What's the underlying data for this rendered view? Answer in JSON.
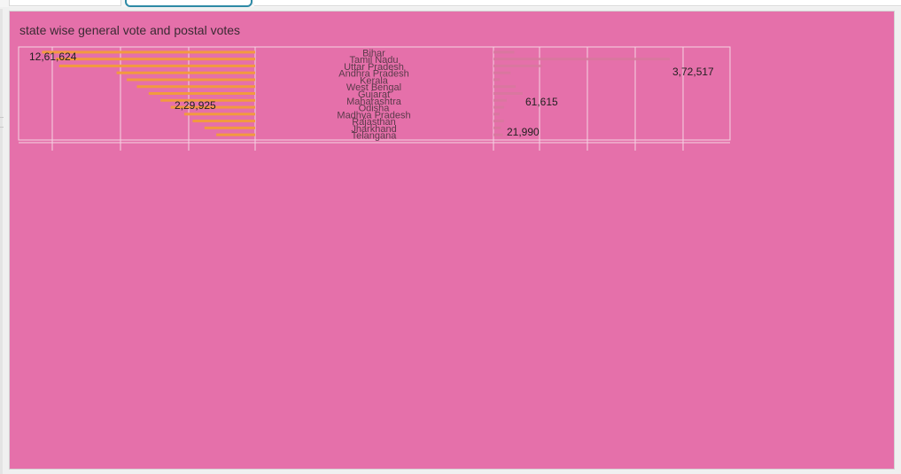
{
  "panel": {
    "title": "state wise general vote and postal votes"
  },
  "colors": {
    "background": "#e570aa",
    "general_bar": "#f29a3f",
    "postal_bar": "#d7789d",
    "grid": "#f5d3e3"
  },
  "chart_data": {
    "type": "bar",
    "orientation": "horizontal",
    "layout": "butterfly",
    "title": "state wise general vote and postal votes",
    "categories": [
      "Bihar",
      "Tamil Nadu",
      "Uttar Pradesh",
      "Andhra Pradesh",
      "Kerala",
      "West Bengal",
      "Gujarat",
      "Maharashtra",
      "Odisha",
      "Madhya Pradesh",
      "Rajasthan",
      "Jharkhand",
      "Telangana"
    ],
    "series": [
      {
        "side": "left",
        "values": [
          1261624,
          1180000,
          1160000,
          820000,
          760000,
          700000,
          630000,
          560000,
          500000,
          420000,
          370000,
          300000,
          229925
        ],
        "shown_labels": [
          "12,61,624",
          "2,29,925"
        ]
      },
      {
        "side": "right",
        "values": [
          44000,
          372517,
          102000,
          36000,
          14000,
          47000,
          61615,
          28000,
          22000,
          13000,
          21990,
          16000,
          20000
        ],
        "shown_labels": [
          "3,72,517",
          "61,615",
          "21,990"
        ]
      }
    ],
    "left_xlim": [
      1400000,
      0
    ],
    "right_xlim": [
      0,
      500000
    ],
    "grid": true
  }
}
